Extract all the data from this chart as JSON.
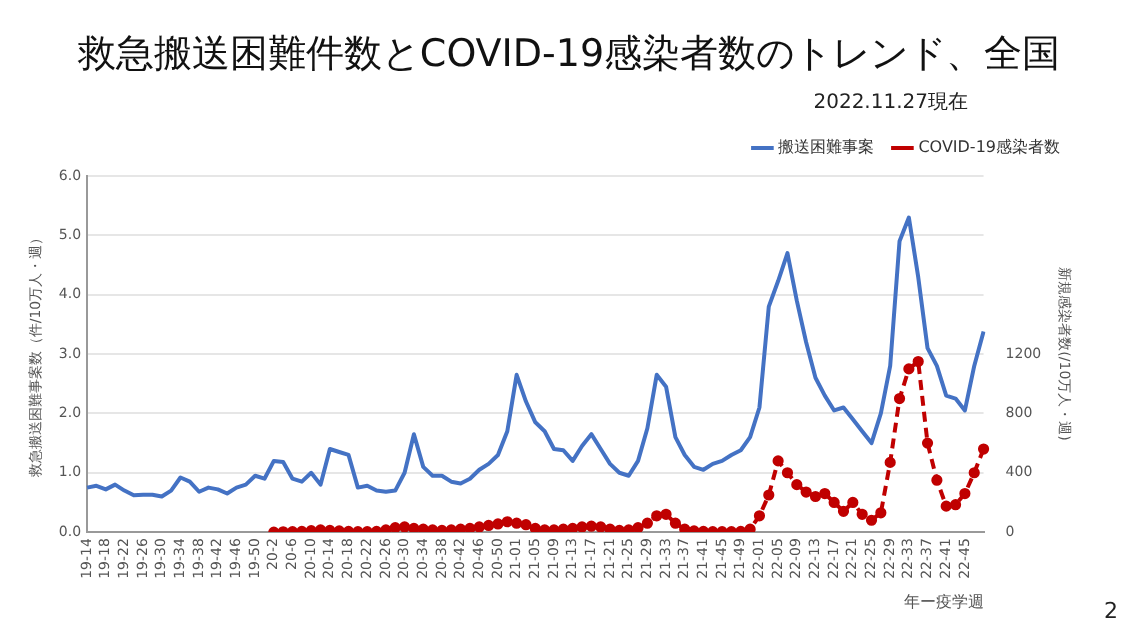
{
  "chart_data": {
    "type": "line",
    "title": "救急搬送困難件数とCOVID-19感染者数のトレンド、全国",
    "subtitle": "2022.11.27現在",
    "annotations": [
      "2"
    ],
    "xlabel": "年ー疫学週",
    "ylabel": "救急搬送困難事案数（件/10万人・週）",
    "y2label": "新規感染者数(/10万人・週)",
    "categories": [
      "19-14",
      null,
      "19-18",
      null,
      "19-22",
      null,
      "19-26",
      null,
      "19-30",
      null,
      "19-34",
      null,
      "19-38",
      null,
      "19-42",
      null,
      "19-46",
      null,
      "19-50",
      null,
      "20-2",
      null,
      "20-6",
      null,
      "20-10",
      null,
      "20-14",
      null,
      "20-18",
      null,
      "20-22",
      null,
      "20-26",
      null,
      "20-30",
      null,
      "20-34",
      null,
      "20-38",
      null,
      "20-42",
      null,
      "20-46",
      null,
      "20-50",
      null,
      "21-01",
      null,
      "21-05",
      null,
      "21-09",
      null,
      "21-13",
      null,
      "21-17",
      null,
      "21-21",
      null,
      "21-25",
      null,
      "21-29",
      null,
      "21-33",
      null,
      "21-37",
      null,
      "21-41",
      null,
      "21-45",
      null,
      "21-49",
      null,
      "22-01",
      null,
      "22-05",
      null,
      "22-09",
      null,
      "22-13",
      null,
      "22-17",
      null,
      "22-21",
      null,
      "22-25",
      null,
      "22-29",
      null,
      "22-33",
      null,
      "22-37",
      null,
      "22-41",
      null,
      "22-45",
      null,
      null
    ],
    "series": [
      {
        "name": "搬送困難事案",
        "color": "#4472c4",
        "line_style": "solid",
        "marker": "none",
        "values": [
          0.75,
          0.78,
          0.72,
          0.8,
          0.7,
          0.62,
          0.63,
          0.63,
          0.6,
          0.7,
          0.92,
          0.85,
          0.68,
          0.75,
          0.72,
          0.65,
          0.75,
          0.8,
          0.95,
          0.9,
          1.2,
          1.18,
          0.9,
          0.85,
          1.0,
          0.8,
          1.4,
          1.35,
          1.3,
          0.75,
          0.78,
          0.7,
          0.68,
          0.7,
          1.0,
          1.65,
          1.1,
          0.95,
          0.95,
          0.85,
          0.82,
          0.9,
          1.05,
          1.15,
          1.3,
          1.7,
          2.65,
          2.2,
          1.85,
          1.7,
          1.4,
          1.38,
          1.2,
          1.45,
          1.65,
          1.4,
          1.15,
          1.0,
          0.95,
          1.2,
          1.75,
          2.65,
          2.45,
          1.6,
          1.3,
          1.1,
          1.05,
          1.15,
          1.2,
          1.3,
          1.38,
          1.6,
          2.1,
          3.8,
          4.23,
          4.7,
          3.9,
          3.2,
          2.6,
          2.3,
          2.05,
          2.1,
          1.9,
          1.7,
          1.5,
          2.0,
          2.8,
          4.9,
          5.3,
          4.3,
          3.1,
          2.8,
          2.3,
          2.25,
          2.05,
          2.8,
          3.38
        ]
      },
      {
        "name": "COVID-19感染者数",
        "color": "#c00000",
        "axis": "y2",
        "line_style": "dashed",
        "marker": "circle",
        "values": [
          null,
          null,
          null,
          null,
          null,
          null,
          null,
          null,
          null,
          null,
          null,
          null,
          null,
          null,
          null,
          null,
          null,
          null,
          null,
          null,
          0,
          2,
          3,
          5,
          10,
          15,
          12,
          8,
          5,
          3,
          3,
          5,
          15,
          30,
          35,
          25,
          20,
          15,
          12,
          15,
          20,
          25,
          35,
          45,
          55,
          70,
          60,
          50,
          25,
          15,
          15,
          20,
          25,
          35,
          40,
          35,
          20,
          12,
          15,
          30,
          60,
          110,
          120,
          60,
          20,
          8,
          5,
          3,
          3,
          3,
          5,
          20,
          110,
          250,
          480,
          400,
          320,
          270,
          240,
          260,
          200,
          140,
          200,
          120,
          80,
          130,
          470,
          900,
          1100,
          1150,
          600,
          350,
          175,
          185,
          260,
          400,
          560
        ]
      }
    ],
    "ylim": [
      0,
      6
    ],
    "yticks": [
      {
        "value": 0,
        "label": "0.0"
      },
      {
        "value": 1,
        "label": "1.0"
      },
      {
        "value": 2,
        "label": "2.0"
      },
      {
        "value": 3,
        "label": "3.0"
      },
      {
        "value": 4,
        "label": "4.0"
      },
      {
        "value": 5,
        "label": "5.0"
      },
      {
        "value": 6,
        "label": "6.0"
      }
    ],
    "y2lim": [
      0,
      2400
    ],
    "y2ticks": [
      0,
      400,
      800,
      1200
    ],
    "grid": "y",
    "legend": "top right"
  }
}
